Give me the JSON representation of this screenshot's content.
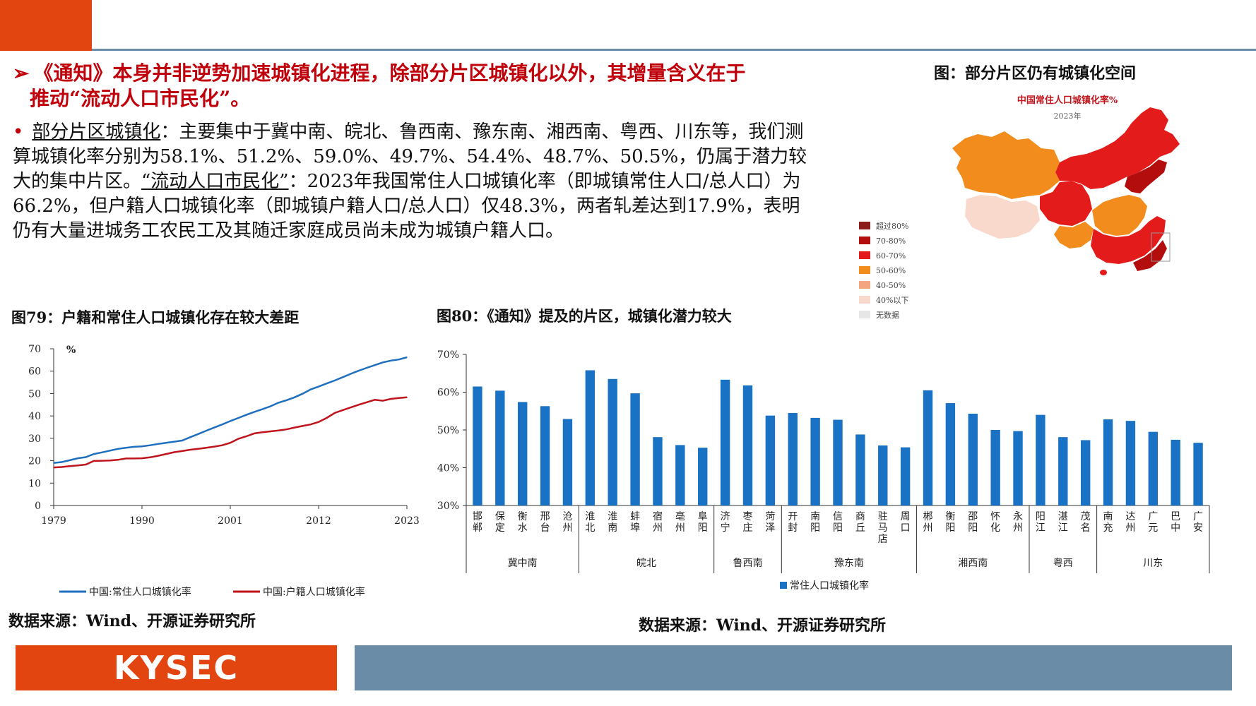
{
  "headline": {
    "arrow": "➢",
    "line1": "《通知》本身并非逆势加速城镇化进程，除部分片区城镇化以外，其增量含义在于",
    "line2": "推动“流动人口市民化”。"
  },
  "body": {
    "bullet": "•",
    "seg1_u": "部分片区城镇化",
    "seg2": "：主要集中于冀中南、皖北、鲁西南、豫东南、湘西南、粤西、川东等，我们测算城镇化率分别为58.1%、51.2%、59.0%、49.7%、54.4%、48.7%、50.5%，仍属于潜力较大的集中片区。",
    "seg3_u": "“流动人口市民化”",
    "seg4": "：2023年我国常住人口城镇化率（即城镇常住人口/总人口）为66.2%，但户籍人口城镇化率（即城镇户籍人口/总人口）仅48.3%，两者轧差达到17.9%，表明仍有大量进城务工农民工及其随迁家庭成员尚未成为城镇户籍人口。"
  },
  "fig79": {
    "title": "图79：户籍和常住人口城镇化存在较大差距"
  },
  "fig80": {
    "title": "图80：《通知》提及的片区，城镇化潜力较大"
  },
  "map": {
    "title": "图：部分片区仍有城镇化空间",
    "chart_title": "中国常住人口城镇化率%",
    "chart_subtitle": "2023年",
    "legend": [
      {
        "label": "超过80%",
        "color": "#8b1a1a"
      },
      {
        "label": "70-80%",
        "color": "#b30d0d"
      },
      {
        "label": "60-70%",
        "color": "#e31b1b"
      },
      {
        "label": "50-60%",
        "color": "#f28c1c"
      },
      {
        "label": "40-50%",
        "color": "#f2a57e"
      },
      {
        "label": "40%以下",
        "color": "#f8d9cc"
      },
      {
        "label": "无数据",
        "color": "#e6e6e6"
      }
    ]
  },
  "sources": {
    "left": "数据来源：Wind、开源证券研究所",
    "right": "数据来源：Wind、开源证券研究所"
  },
  "logo": "KYSEC",
  "chart_data": [
    {
      "type": "line",
      "unit_label": "%",
      "ylim": [
        0,
        70
      ],
      "yticks": [
        0,
        10,
        20,
        30,
        40,
        50,
        60,
        70
      ],
      "xticks": [
        1979,
        1990,
        2001,
        2012,
        2023
      ],
      "xlim": [
        1979,
        2023
      ],
      "grid": false,
      "legend_position": "bottom",
      "series": [
        {
          "name": "中国:常住人口城镇化率",
          "color": "#1f6fbf",
          "x": [
            1979,
            1980,
            1981,
            1982,
            1983,
            1984,
            1985,
            1986,
            1987,
            1988,
            1989,
            1990,
            1991,
            1992,
            1993,
            1994,
            1995,
            1996,
            1997,
            1998,
            1999,
            2000,
            2001,
            2002,
            2003,
            2004,
            2005,
            2006,
            2007,
            2008,
            2009,
            2010,
            2011,
            2012,
            2013,
            2014,
            2015,
            2016,
            2017,
            2018,
            2019,
            2020,
            2021,
            2022,
            2023
          ],
          "values": [
            19.0,
            19.4,
            20.2,
            21.1,
            21.6,
            23.0,
            23.7,
            24.5,
            25.3,
            25.8,
            26.2,
            26.4,
            26.9,
            27.5,
            28.0,
            28.5,
            29.0,
            30.5,
            31.9,
            33.4,
            34.8,
            36.2,
            37.7,
            39.1,
            40.5,
            41.8,
            43.0,
            44.3,
            45.9,
            47.0,
            48.3,
            49.9,
            51.8,
            53.1,
            54.5,
            55.8,
            57.3,
            58.8,
            60.2,
            61.5,
            62.7,
            63.9,
            64.7,
            65.2,
            66.2
          ]
        },
        {
          "name": "中国:户籍人口城镇化率",
          "color": "#c0141c",
          "x": [
            1979,
            1980,
            1981,
            1982,
            1983,
            1984,
            1985,
            1986,
            1987,
            1988,
            1989,
            1990,
            1991,
            1992,
            1993,
            1994,
            1995,
            1996,
            1997,
            1998,
            1999,
            2000,
            2001,
            2002,
            2003,
            2004,
            2005,
            2006,
            2007,
            2008,
            2009,
            2010,
            2011,
            2012,
            2013,
            2014,
            2015,
            2016,
            2017,
            2018,
            2019,
            2020,
            2021,
            2022,
            2023
          ],
          "values": [
            17.0,
            17.2,
            17.6,
            17.9,
            18.3,
            19.9,
            20.0,
            20.1,
            20.4,
            21.0,
            21.0,
            21.1,
            21.5,
            22.2,
            23.0,
            23.8,
            24.3,
            24.9,
            25.3,
            25.8,
            26.3,
            26.9,
            28.0,
            29.8,
            30.9,
            32.2,
            32.7,
            33.1,
            33.5,
            34.0,
            34.8,
            35.5,
            36.2,
            37.3,
            39.1,
            41.3,
            42.6,
            43.8,
            45.0,
            46.1,
            47.2,
            46.8,
            47.6,
            48.0,
            48.3
          ]
        }
      ]
    },
    {
      "type": "bar",
      "ylim": [
        30,
        70
      ],
      "yticks": [
        "30%",
        "40%",
        "50%",
        "60%",
        "70%"
      ],
      "legend_position": "bottom",
      "series": [
        {
          "name": "常住人口城镇化率",
          "color": "#1a72c4"
        }
      ],
      "categories": [
        "邯郸",
        "保定",
        "衡水",
        "邢台",
        "沧州",
        "淮北",
        "淮南",
        "蚌埠",
        "宿州",
        "亳州",
        "阜阳",
        "济宁",
        "枣庄",
        "菏泽",
        "开封",
        "南阳",
        "信阳",
        "商丘",
        "驻马店",
        "周口",
        "郴州",
        "衡阳",
        "邵阳",
        "怀化",
        "永州",
        "阳江",
        "湛江",
        "茂名",
        "南充",
        "达州",
        "广元",
        "巴中",
        "广安"
      ],
      "values": [
        61.5,
        60.4,
        57.4,
        56.3,
        52.9,
        65.8,
        63.5,
        59.7,
        48.1,
        46.0,
        45.3,
        63.3,
        61.8,
        53.8,
        54.5,
        53.2,
        52.7,
        48.8,
        45.9,
        45.4,
        60.5,
        57.1,
        54.3,
        50.0,
        49.7,
        54.0,
        48.1,
        47.3,
        52.8,
        52.4,
        49.5,
        47.4,
        46.6
      ],
      "groups": [
        {
          "label": "冀中南",
          "count": 5
        },
        {
          "label": "皖北",
          "count": 6
        },
        {
          "label": "鲁西南",
          "count": 3
        },
        {
          "label": "豫东南",
          "count": 6
        },
        {
          "label": "湘西南",
          "count": 5
        },
        {
          "label": "粤西",
          "count": 3
        },
        {
          "label": "川东",
          "count": 5
        }
      ]
    }
  ]
}
